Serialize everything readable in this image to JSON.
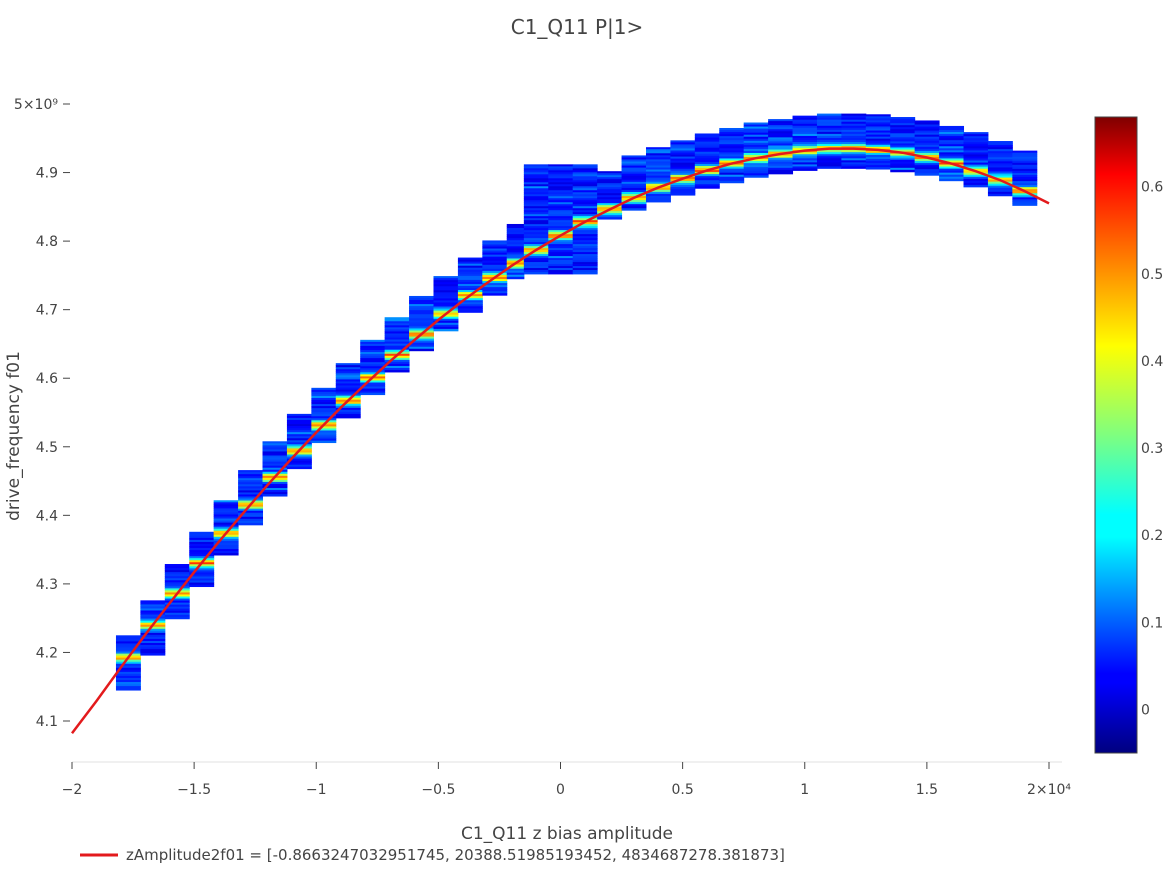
{
  "chart_data": {
    "type": "heatmap",
    "title": "C1_Q11 P|1>",
    "xlabel": "C1_Q11 z bias amplitude",
    "ylabel": "drive_frequency f01",
    "x_range": [
      -20000,
      20400
    ],
    "y_range": [
      4060000000,
      5010000000
    ],
    "x_ticks": [
      {
        "value": -20000,
        "label": "−2"
      },
      {
        "value": -15000,
        "label": "−1.5"
      },
      {
        "value": -10000,
        "label": "−1"
      },
      {
        "value": -5000,
        "label": "−0.5"
      },
      {
        "value": 0,
        "label": "0"
      },
      {
        "value": 5000,
        "label": "0.5"
      },
      {
        "value": 10000,
        "label": "1"
      },
      {
        "value": 15000,
        "label": "1.5"
      },
      {
        "value": 20000,
        "label": "2×10⁴"
      }
    ],
    "y_ticks": [
      {
        "value": 4100000000,
        "label": "4.1"
      },
      {
        "value": 4200000000,
        "label": "4.2"
      },
      {
        "value": 4300000000,
        "label": "4.3"
      },
      {
        "value": 4400000000,
        "label": "4.4"
      },
      {
        "value": 4500000000,
        "label": "4.5"
      },
      {
        "value": 4600000000,
        "label": "4.6"
      },
      {
        "value": 4700000000,
        "label": "4.7"
      },
      {
        "value": 4800000000,
        "label": "4.8"
      },
      {
        "value": 4900000000,
        "label": "4.9"
      },
      {
        "value": 5000000000,
        "label": "5×10⁹"
      }
    ],
    "colorscale": "jet",
    "colorbar_ticks": [
      {
        "value": 0,
        "label": "0"
      },
      {
        "value": 0.1,
        "label": "0.1"
      },
      {
        "value": 0.2,
        "label": "0.2"
      },
      {
        "value": 0.3,
        "label": "0.3"
      },
      {
        "value": 0.4,
        "label": "0.4"
      },
      {
        "value": 0.5,
        "label": "0.5"
      },
      {
        "value": 0.6,
        "label": "0.6"
      }
    ],
    "colorbar_range": [
      -0.05,
      0.68
    ],
    "heatmap_columns": [
      {
        "x_min": -18200,
        "x_max": -17200,
        "y_min": 4145000000,
        "y_max": 4225000000
      },
      {
        "x_min": -17200,
        "x_max": -16200,
        "y_min": 4196000000,
        "y_max": 4276000000
      },
      {
        "x_min": -16200,
        "x_max": -15200,
        "y_min": 4249000000,
        "y_max": 4329000000
      },
      {
        "x_min": -15200,
        "x_max": -14200,
        "y_min": 4296000000,
        "y_max": 4376000000
      },
      {
        "x_min": -14200,
        "x_max": -13200,
        "y_min": 4342000000,
        "y_max": 4422000000
      },
      {
        "x_min": -13200,
        "x_max": -12200,
        "y_min": 4386000000,
        "y_max": 4466000000
      },
      {
        "x_min": -12200,
        "x_max": -11200,
        "y_min": 4428000000,
        "y_max": 4508000000
      },
      {
        "x_min": -11200,
        "x_max": -10200,
        "y_min": 4468000000,
        "y_max": 4548000000
      },
      {
        "x_min": -10200,
        "x_max": -9200,
        "y_min": 4506000000,
        "y_max": 4586000000
      },
      {
        "x_min": -9200,
        "x_max": -8200,
        "y_min": 4542000000,
        "y_max": 4622000000
      },
      {
        "x_min": -8200,
        "x_max": -7200,
        "y_min": 4576000000,
        "y_max": 4656000000
      },
      {
        "x_min": -7200,
        "x_max": -6200,
        "y_min": 4609000000,
        "y_max": 4689000000
      },
      {
        "x_min": -6200,
        "x_max": -5200,
        "y_min": 4640000000,
        "y_max": 4720000000
      },
      {
        "x_min": -5200,
        "x_max": -4200,
        "y_min": 4669000000,
        "y_max": 4749000000
      },
      {
        "x_min": -4200,
        "x_max": -3200,
        "y_min": 4696000000,
        "y_max": 4776000000
      },
      {
        "x_min": -3200,
        "x_max": -2200,
        "y_min": 4721000000,
        "y_max": 4801000000
      },
      {
        "x_min": -2200,
        "x_max": -1500,
        "y_min": 4745000000,
        "y_max": 4825000000
      },
      {
        "x_min": -1500,
        "x_max": -500,
        "y_min": 4752000000,
        "y_max": 4912000000
      },
      {
        "x_min": -500,
        "x_max": 500,
        "y_min": 4752000000,
        "y_max": 4912000000
      },
      {
        "x_min": 500,
        "x_max": 1500,
        "y_min": 4752000000,
        "y_max": 4912000000
      },
      {
        "x_min": 1500,
        "x_max": 2500,
        "y_min": 4832000000,
        "y_max": 4902000000
      },
      {
        "x_min": 2500,
        "x_max": 3500,
        "y_min": 4845000000,
        "y_max": 4925000000
      },
      {
        "x_min": 3500,
        "x_max": 4500,
        "y_min": 4857000000,
        "y_max": 4937000000
      },
      {
        "x_min": 4500,
        "x_max": 5500,
        "y_min": 4867000000,
        "y_max": 4947000000
      },
      {
        "x_min": 5500,
        "x_max": 6500,
        "y_min": 4877000000,
        "y_max": 4957000000
      },
      {
        "x_min": 6500,
        "x_max": 7500,
        "y_min": 4885000000,
        "y_max": 4965000000
      },
      {
        "x_min": 7500,
        "x_max": 8500,
        "y_min": 4893000000,
        "y_max": 4973000000
      },
      {
        "x_min": 8500,
        "x_max": 9500,
        "y_min": 4898000000,
        "y_max": 4978000000
      },
      {
        "x_min": 9500,
        "x_max": 10500,
        "y_min": 4903000000,
        "y_max": 4983000000
      },
      {
        "x_min": 10500,
        "x_max": 11500,
        "y_min": 4906000000,
        "y_max": 4986000000
      },
      {
        "x_min": 11500,
        "x_max": 12500,
        "y_min": 4906000000,
        "y_max": 4986000000
      },
      {
        "x_min": 12500,
        "x_max": 13500,
        "y_min": 4905000000,
        "y_max": 4985000000
      },
      {
        "x_min": 13500,
        "x_max": 14500,
        "y_min": 4901000000,
        "y_max": 4981000000
      },
      {
        "x_min": 14500,
        "x_max": 15500,
        "y_min": 4896000000,
        "y_max": 4976000000
      },
      {
        "x_min": 15500,
        "x_max": 16500,
        "y_min": 4888000000,
        "y_max": 4968000000
      },
      {
        "x_min": 16500,
        "x_max": 17500,
        "y_min": 4879000000,
        "y_max": 4959000000
      },
      {
        "x_min": 17500,
        "x_max": 18500,
        "y_min": 4866000000,
        "y_max": 4946000000
      },
      {
        "x_min": 18500,
        "x_max": 19500,
        "y_min": 4852000000,
        "y_max": 4932000000
      }
    ],
    "series": [
      {
        "name": "zAmplitude2f01 = [-0.8663247032951745, 20388.51985193452, 4834687278.381873]",
        "type": "line",
        "color": "#e31a1c",
        "points": [
          [
            -20000,
            4082000000
          ],
          [
            -19000,
            4129000000
          ],
          [
            -18000,
            4178000000
          ],
          [
            -17000,
            4226000000
          ],
          [
            -16000,
            4272000000
          ],
          [
            -15000,
            4317000000
          ],
          [
            -14000,
            4361000000
          ],
          [
            -13000,
            4403000000
          ],
          [
            -12000,
            4444000000
          ],
          [
            -11000,
            4483000000
          ],
          [
            -10000,
            4521000000
          ],
          [
            -9000,
            4557000000
          ],
          [
            -8000,
            4591000000
          ],
          [
            -7000,
            4624000000
          ],
          [
            -6000,
            4655000000
          ],
          [
            -5000,
            4685000000
          ],
          [
            -4000,
            4713000000
          ],
          [
            -3000,
            4739000000
          ],
          [
            -2000,
            4764000000
          ],
          [
            -1000,
            4787000000
          ],
          [
            0,
            4808000000
          ],
          [
            1000,
            4828000000
          ],
          [
            2000,
            4846000000
          ],
          [
            3000,
            4863000000
          ],
          [
            4000,
            4878000000
          ],
          [
            5000,
            4891000000
          ],
          [
            6000,
            4903000000
          ],
          [
            7000,
            4913000000
          ],
          [
            8000,
            4921000000
          ],
          [
            9000,
            4927000000
          ],
          [
            10000,
            4932000000
          ],
          [
            11000,
            4935000000
          ],
          [
            12000,
            4935000000
          ],
          [
            13000,
            4933000000
          ],
          [
            14000,
            4929000000
          ],
          [
            15000,
            4922000000
          ],
          [
            16000,
            4913000000
          ],
          [
            17000,
            4902000000
          ],
          [
            18000,
            4889000000
          ],
          [
            19000,
            4873000000
          ],
          [
            20000,
            4855000000
          ]
        ]
      }
    ],
    "legend_position": "bottom-left"
  }
}
